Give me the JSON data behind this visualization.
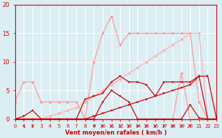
{
  "x": [
    0,
    1,
    2,
    3,
    4,
    5,
    6,
    7,
    8,
    9,
    10,
    11,
    12,
    13,
    14,
    15,
    16,
    17,
    18,
    19,
    20,
    21,
    22,
    23
  ],
  "lines": [
    {
      "name": "light_pink_peaked",
      "color": "#FF9999",
      "lw": 0.9,
      "marker": "D",
      "markersize": 2.0,
      "alpha": 1.0,
      "y": [
        0,
        0,
        0,
        0,
        0,
        0,
        0,
        0,
        0,
        10,
        15,
        18,
        13,
        15,
        15,
        15,
        15,
        15,
        15,
        15,
        15,
        3,
        0,
        0
      ]
    },
    {
      "name": "light_pink_diagonal",
      "color": "#FFB0B0",
      "lw": 0.9,
      "marker": "D",
      "markersize": 2.0,
      "alpha": 1.0,
      "y": [
        0,
        0,
        0,
        0,
        0.5,
        1,
        1.5,
        2,
        3,
        4,
        5,
        6,
        7,
        8,
        9,
        10,
        11,
        12,
        13,
        14,
        15,
        15,
        0,
        0
      ]
    },
    {
      "name": "light_pink_low",
      "color": "#FF9999",
      "lw": 0.9,
      "marker": "D",
      "markersize": 2.0,
      "alpha": 1.0,
      "y": [
        3,
        6.5,
        6.5,
        3,
        3,
        3,
        3,
        3,
        0,
        0,
        0,
        0,
        0,
        0,
        0,
        0,
        0,
        0,
        0,
        8,
        0,
        0,
        0,
        0
      ]
    },
    {
      "name": "dark_red_main",
      "color": "#CC0000",
      "lw": 0.9,
      "marker": "s",
      "markersize": 2.0,
      "alpha": 1.0,
      "y": [
        0,
        0.5,
        1.5,
        0,
        0,
        0,
        0,
        0,
        3.5,
        4,
        4.5,
        6.5,
        7.5,
        6.5,
        6.5,
        6.0,
        4.0,
        6.5,
        6.5,
        6.5,
        6.5,
        7.5,
        7.5,
        0
      ]
    },
    {
      "name": "dark_red_diagonal",
      "color": "#CC0000",
      "lw": 0.9,
      "marker": "s",
      "markersize": 2.0,
      "alpha": 1.0,
      "y": [
        0,
        0,
        0,
        0,
        0,
        0,
        0,
        0,
        0,
        0.5,
        1.0,
        1.5,
        2.0,
        2.5,
        3.0,
        3.5,
        4.0,
        4.5,
        5.0,
        5.5,
        6.0,
        7.5,
        0,
        0
      ]
    },
    {
      "name": "dark_red_mid",
      "color": "#CC0000",
      "lw": 0.9,
      "marker": "s",
      "markersize": 2.0,
      "alpha": 1.0,
      "y": [
        0,
        0,
        0,
        0,
        0,
        0,
        0,
        0,
        0,
        0,
        3.0,
        5.0,
        4.0,
        3.0,
        0,
        0,
        0,
        0,
        0,
        0,
        2.5,
        0.2,
        0,
        0
      ]
    }
  ],
  "arrows_down_x": [
    1,
    2,
    9,
    10,
    11,
    12,
    13,
    14,
    15,
    16,
    17,
    18,
    19,
    20
  ],
  "xlabel": "Vent moyen/en rafales ( km/h )",
  "xlim": [
    0,
    23
  ],
  "ylim": [
    0,
    20
  ],
  "xticks": [
    0,
    1,
    2,
    3,
    4,
    5,
    6,
    7,
    8,
    9,
    10,
    11,
    12,
    13,
    14,
    15,
    16,
    17,
    18,
    19,
    20,
    21,
    22,
    23
  ],
  "yticks": [
    0,
    5,
    10,
    15,
    20
  ],
  "bg_color": "#DAEEF3",
  "grid_color": "#FFFFFF",
  "axis_color": "#CC0000",
  "tick_color": "#CC0000",
  "label_color": "#CC0000",
  "tick_fontsize": 5,
  "xlabel_fontsize": 6
}
